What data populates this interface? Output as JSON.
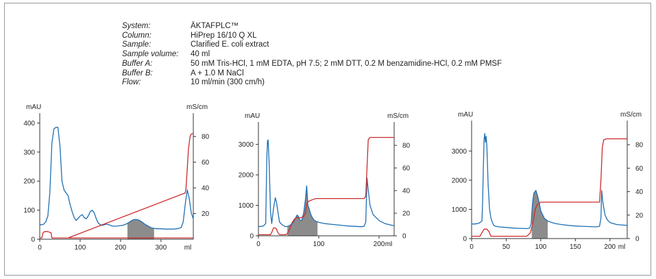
{
  "info": {
    "rows": [
      {
        "label": "System:",
        "value": "ÄKTAFPLC™"
      },
      {
        "label": "Column:",
        "value": "HiPrep 16/10 Q XL"
      },
      {
        "label": "Sample:",
        "value": "Clarified E. coli extract"
      },
      {
        "label": "Sample volume:",
        "value": "40 ml"
      },
      {
        "label": "Buffer A:",
        "value": "50 mM Tris-HCl, 1 mM EDTA, pH 7.5; 2 mM DTT, 0.2 M benzamidine-HCl, 0.2 mM PMSF"
      },
      {
        "label": "Buffer B:",
        "value": "A + 1.0 M NaCl"
      },
      {
        "label": "Flow:",
        "value": "10 ml/min (300 cm/h)"
      }
    ]
  },
  "colors": {
    "uv": "#1f6fb3",
    "conductivity": "#cc2a2a",
    "fraction_fill": "#8c8c8c"
  },
  "chart_data": [
    {
      "type": "line",
      "ylabel_left": "mAU",
      "ylabel_right": "mS/cm",
      "xunit": "ml",
      "xlim": [
        0,
        380
      ],
      "xticks": [
        0,
        100,
        200,
        300
      ],
      "ylim_left": [
        0,
        420
      ],
      "yticks_left": [
        0,
        100,
        200,
        300,
        400
      ],
      "ylim_right": [
        0,
        95
      ],
      "yticks_right": [
        20,
        40,
        60,
        80
      ],
      "fraction": [
        217,
        283
      ],
      "series": [
        {
          "axis": "left",
          "x": [
            0,
            5,
            10,
            15,
            20,
            25,
            30,
            35,
            40,
            45,
            50,
            55,
            60,
            65,
            70,
            75,
            80,
            85,
            90,
            95,
            100,
            105,
            110,
            115,
            120,
            125,
            130,
            135,
            140,
            145,
            150,
            155,
            160,
            165,
            170,
            175,
            180,
            185,
            190,
            195,
            200,
            205,
            210,
            215,
            220,
            225,
            230,
            235,
            240,
            245,
            250,
            255,
            260,
            265,
            270,
            275,
            280,
            285,
            290,
            300,
            310,
            320,
            330,
            340,
            350,
            355,
            360,
            365,
            370,
            375,
            380
          ],
          "y": [
            50,
            50,
            52,
            60,
            80,
            160,
            330,
            380,
            385,
            385,
            320,
            200,
            170,
            160,
            150,
            120,
            95,
            75,
            65,
            72,
            80,
            85,
            75,
            70,
            80,
            95,
            100,
            90,
            70,
            55,
            50,
            48,
            50,
            52,
            50,
            48,
            45,
            45,
            45,
            46,
            47,
            48,
            50,
            53,
            57,
            62,
            66,
            68,
            68,
            66,
            62,
            57,
            52,
            48,
            44,
            40,
            38,
            37,
            36,
            36,
            35,
            35,
            35,
            36,
            40,
            60,
            120,
            170,
            140,
            90,
            70
          ]
        },
        {
          "axis": "right",
          "x": [
            0,
            5,
            8,
            12,
            18,
            20,
            28,
            30,
            60,
            70,
            380
          ],
          "y": [
            1,
            1,
            5,
            6,
            6,
            6,
            5,
            1,
            1,
            1,
            1
          ]
        },
        {
          "axis": "right",
          "x": [
            70,
            360,
            362,
            365,
            368,
            372,
            375,
            380
          ],
          "y": [
            1,
            36,
            40,
            55,
            70,
            80,
            82,
            82
          ]
        }
      ]
    },
    {
      "type": "line",
      "ylabel_left": "mAU",
      "ylabel_right": "mS/cm",
      "xunit": "ml",
      "xlim": [
        0,
        225
      ],
      "xticks": [
        0,
        100,
        200
      ],
      "ylim_left": [
        0,
        3600
      ],
      "yticks_left": [
        0,
        1000,
        2000,
        3000
      ],
      "ylim_right": [
        0,
        97
      ],
      "yticks_right": [
        0,
        20,
        40,
        60,
        80
      ],
      "fraction": [
        48,
        98
      ],
      "series": [
        {
          "axis": "left",
          "x": [
            0,
            8,
            12,
            14,
            15,
            16,
            18,
            20,
            22,
            25,
            28,
            30,
            33,
            35,
            40,
            45,
            50,
            55,
            58,
            62,
            64,
            66,
            68,
            70,
            72,
            75,
            78,
            80,
            82,
            84,
            86,
            88,
            90,
            92,
            95,
            100,
            110,
            120,
            130,
            140,
            150,
            160,
            170,
            175,
            178,
            180,
            182,
            185,
            190,
            200,
            210,
            220,
            225
          ],
          "y": [
            300,
            320,
            400,
            2600,
            3100,
            3150,
            2300,
            800,
            400,
            900,
            1250,
            1100,
            700,
            450,
            350,
            300,
            320,
            380,
            450,
            600,
            680,
            650,
            540,
            500,
            520,
            750,
            1200,
            1640,
            1000,
            900,
            750,
            650,
            580,
            520,
            480,
            440,
            400,
            380,
            360,
            340,
            320,
            310,
            300,
            310,
            450,
            1900,
            1500,
            1000,
            700,
            500,
            400,
            350,
            330
          ]
        },
        {
          "axis": "right",
          "x": [
            0,
            20,
            22,
            25,
            28,
            30,
            32,
            35,
            40,
            45,
            48,
            52,
            56,
            60,
            62,
            66,
            70,
            75,
            78,
            80,
            82,
            85,
            90,
            95,
            100,
            110,
            120,
            140,
            160,
            170,
            175,
            178,
            180,
            182,
            185,
            190,
            200,
            210,
            225
          ],
          "y": [
            1,
            1,
            3,
            7,
            7,
            6,
            3,
            1,
            1,
            1,
            2,
            6,
            12,
            15,
            16,
            16,
            16,
            17,
            20,
            28,
            30,
            31,
            32,
            33,
            33,
            33,
            33,
            33,
            33,
            33,
            33,
            35,
            60,
            85,
            87,
            87,
            87,
            87,
            87
          ]
        }
      ]
    },
    {
      "type": "line",
      "ylabel_left": "mAU",
      "ylabel_right": "mS/cm",
      "xunit": "ml",
      "xlim": [
        0,
        225
      ],
      "xticks": [
        0,
        50,
        100,
        150,
        200
      ],
      "ylim_left": [
        0,
        3900
      ],
      "yticks_left": [
        0,
        1000,
        2000,
        3000
      ],
      "ylim_right": [
        0,
        97
      ],
      "yticks_right": [
        0,
        20,
        40,
        60,
        80
      ],
      "fraction": [
        87,
        110
      ],
      "series": [
        {
          "axis": "left",
          "x": [
            0,
            5,
            10,
            15,
            16,
            17,
            18,
            19,
            20,
            21,
            22,
            24,
            26,
            28,
            30,
            32,
            35,
            40,
            50,
            60,
            70,
            80,
            84,
            86,
            88,
            90,
            93,
            95,
            98,
            100,
            103,
            105,
            108,
            110,
            115,
            120,
            130,
            140,
            150,
            160,
            170,
            180,
            185,
            187,
            188,
            190,
            193,
            196,
            200,
            210,
            220,
            225
          ],
          "y": [
            500,
            500,
            520,
            600,
            1300,
            2500,
            3400,
            3600,
            3300,
            3500,
            3200,
            1800,
            1000,
            700,
            550,
            450,
            420,
            400,
            380,
            360,
            350,
            340,
            360,
            500,
            1200,
            1550,
            1650,
            1500,
            1200,
            950,
            800,
            700,
            640,
            600,
            560,
            520,
            480,
            450,
            430,
            420,
            410,
            400,
            420,
            700,
            1650,
            1200,
            800,
            650,
            550,
            480,
            460,
            450
          ]
        },
        {
          "axis": "right",
          "x": [
            0,
            12,
            15,
            18,
            22,
            25,
            28,
            80,
            85,
            88,
            90,
            92,
            95,
            100,
            110,
            130,
            150,
            170,
            180,
            185,
            187,
            189,
            191,
            195,
            200,
            210,
            225
          ],
          "y": [
            2,
            2,
            5,
            8,
            8,
            6,
            2,
            2,
            5,
            12,
            18,
            25,
            29,
            31,
            31,
            31,
            31,
            31,
            31,
            31,
            50,
            78,
            84,
            85,
            85,
            85,
            85
          ]
        }
      ]
    }
  ]
}
